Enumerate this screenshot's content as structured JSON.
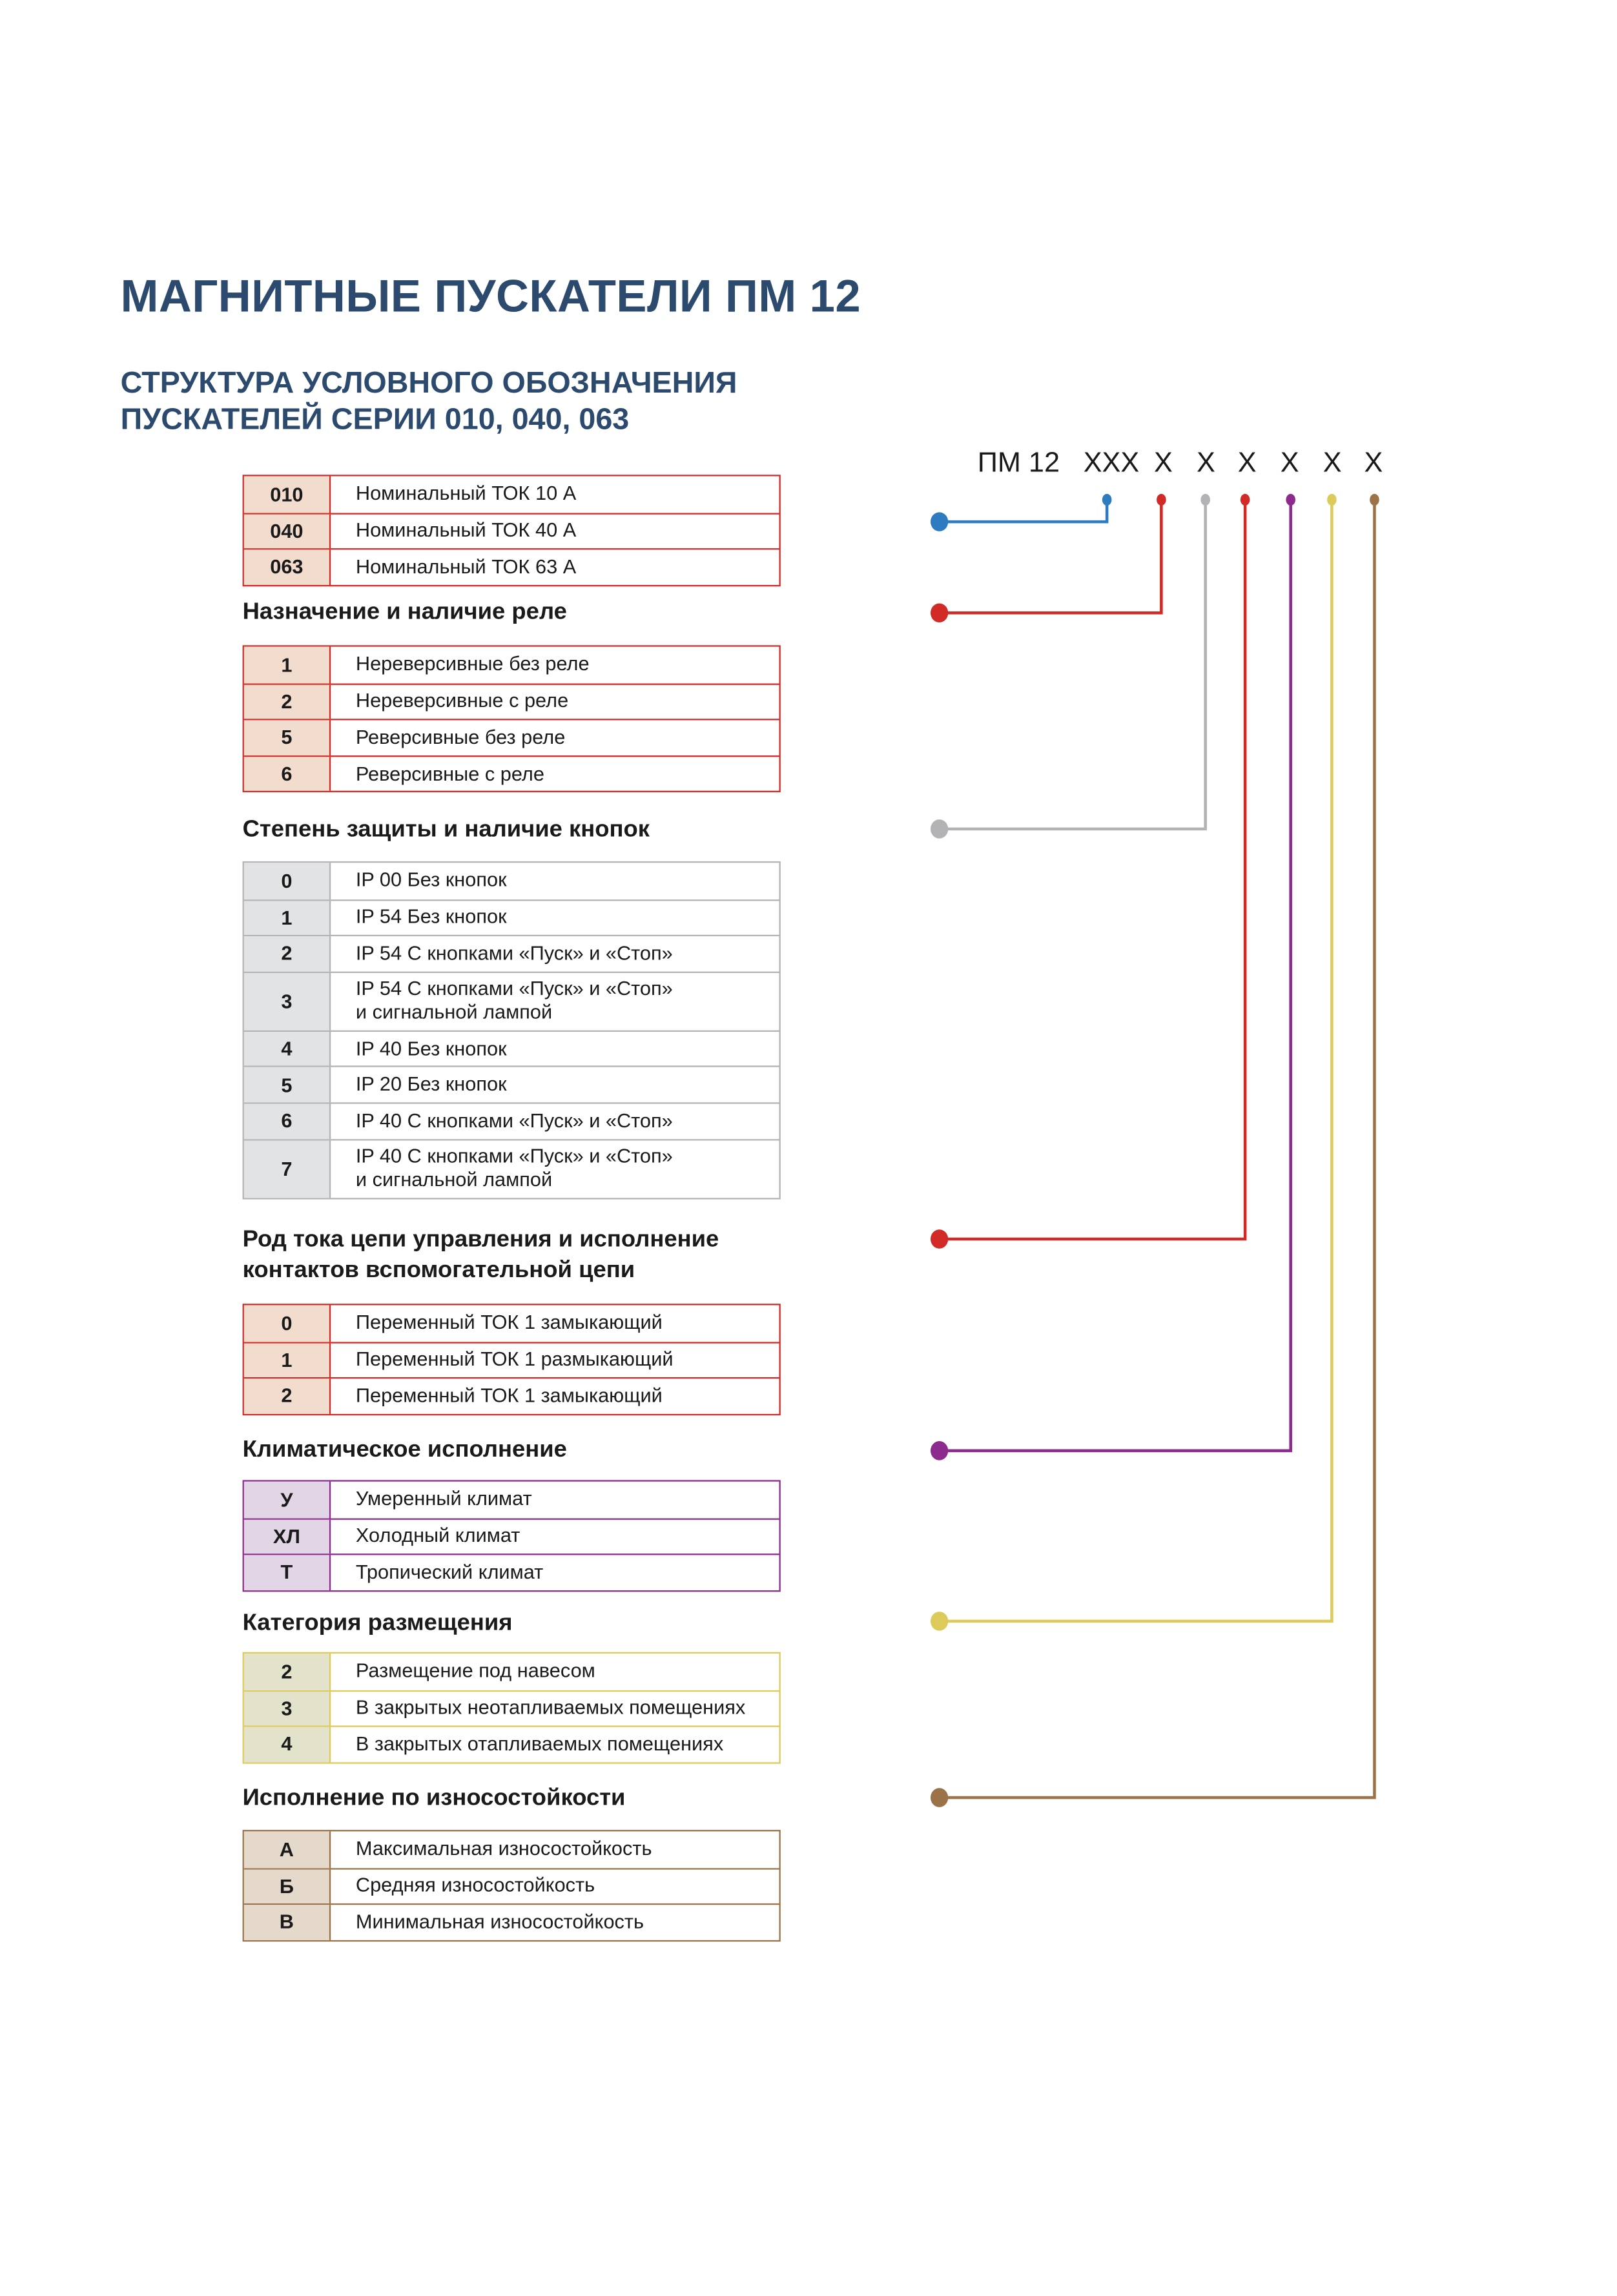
{
  "title": "МАГНИТНЫЕ ПУСКАТЕЛИ ПМ 12",
  "subtitle": [
    "СТРУКТУРА УСЛОВНОГО ОБОЗНАЧЕНИЯ",
    "ПУСКАТЕЛЕЙ СЕРИИ 010, 040, 063"
  ],
  "designation": [
    "ПМ 12",
    "XXX",
    "X",
    "X",
    "X",
    "X",
    "X",
    "X"
  ],
  "sections": [
    {
      "heading": [],
      "color": "#d22b27",
      "fill": "#f2dccd",
      "rows": [
        [
          "010",
          "Номинальный ТОК 10 А"
        ],
        [
          "040",
          "Номинальный ТОК 40 А"
        ],
        [
          "063",
          "Номинальный ТОК 63 А"
        ]
      ]
    },
    {
      "heading": [
        "Назначение и наличие реле"
      ],
      "color": "#d22b27",
      "fill": "#f2dccd",
      "rows": [
        [
          "1",
          "Нереверсивные без реле"
        ],
        [
          "2",
          "Нереверсивные с реле"
        ],
        [
          "5",
          "Реверсивные без реле"
        ],
        [
          "6",
          "Реверсивные с реле"
        ]
      ]
    },
    {
      "heading": [
        "Степень защиты и наличие кнопок"
      ],
      "color": "#b3b3b5",
      "fill": "#e2e3e5",
      "rows": [
        [
          "0",
          "IP 00 Без кнопок"
        ],
        [
          "1",
          "IP 54 Без кнопок"
        ],
        [
          "2",
          "IP 54 С кнопками «Пуск» и «Стоп»"
        ],
        [
          "3",
          "IP 54 С кнопками «Пуск» и «Стоп»\nи сигнальной лампой"
        ],
        [
          "4",
          "IP 40 Без кнопок"
        ],
        [
          "5",
          "IP 20 Без кнопок"
        ],
        [
          "6",
          "IP 40 С кнопками «Пуск» и «Стоп»"
        ],
        [
          "7",
          "IP 40 С кнопками «Пуск» и «Стоп»\nи сигнальной лампой"
        ]
      ]
    },
    {
      "heading": [
        "Род тока цепи управления и исполнение",
        "контактов вспомогательной цепи"
      ],
      "color": "#d22b27",
      "fill": "#f2dccd",
      "rows": [
        [
          "0",
          "Переменный ТОК  1 замыкающий"
        ],
        [
          "1",
          "Переменный ТОК  1 размыкающий"
        ],
        [
          "2",
          "Переменный ТОК  1 замыкающий"
        ]
      ]
    },
    {
      "heading": [
        "Климатическое исполнение"
      ],
      "color": "#8c2a8e",
      "fill": "#e2d5e5",
      "rows": [
        [
          "У",
          "Умеренный климат"
        ],
        [
          "ХЛ",
          "Холодный климат"
        ],
        [
          "Т",
          "Тропический климат"
        ]
      ]
    },
    {
      "heading": [
        "Категория размещения"
      ],
      "color": "#dccb5a",
      "fill": "#e3e3cc",
      "rows": [
        [
          "2",
          "Размещение под навесом"
        ],
        [
          "3",
          "В закрытых неотапливаемых помещениях"
        ],
        [
          "4",
          "В закрытых отапливаемых помещениях"
        ]
      ]
    },
    {
      "heading": [
        "Исполнение по износостойкости"
      ],
      "color": "#9a7448",
      "fill": "#e5d9cc",
      "rows": [
        [
          "А",
          "Максимальная износостойкость"
        ],
        [
          "Б",
          "Средняя  износостойкость"
        ],
        [
          "В",
          "Минимальная износостойкость"
        ]
      ]
    }
  ],
  "connector_colors": [
    "#2f7bc2",
    "#d22b27",
    "#b3b3b5",
    "#d22b27",
    "#8c2a8e",
    "#dccb5a",
    "#9a7448"
  ]
}
